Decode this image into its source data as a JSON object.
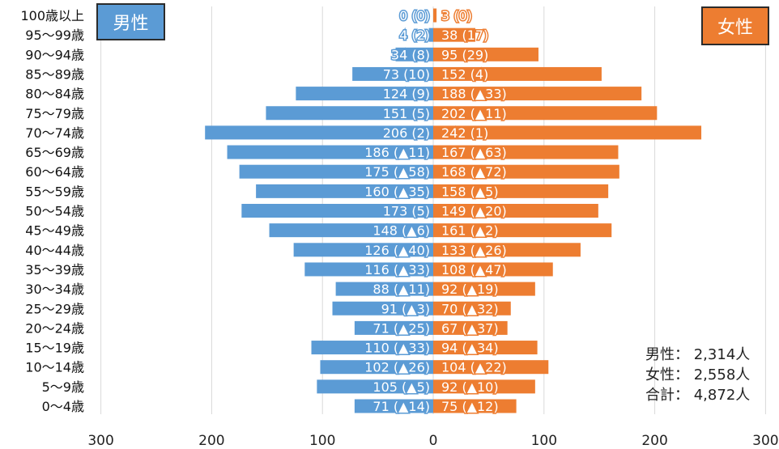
{
  "chart_data": {
    "type": "bar",
    "orientation": "horizontal-population-pyramid",
    "categories": [
      "100歳以上",
      "95～99歳",
      "90～94歳",
      "85～89歳",
      "80～84歳",
      "75～79歳",
      "70～74歳",
      "65～69歳",
      "60～64歳",
      "55～59歳",
      "50～54歳",
      "45～49歳",
      "40～44歳",
      "35～39歳",
      "30～34歳",
      "25～29歳",
      "20～24歳",
      "15～19歳",
      "10～14歳",
      "5～9歳",
      "0～4歳"
    ],
    "series": [
      {
        "name": "男性",
        "color": "#5b9bd5",
        "values": [
          0,
          4,
          34,
          73,
          124,
          151,
          206,
          186,
          175,
          160,
          173,
          148,
          126,
          116,
          88,
          91,
          71,
          110,
          102,
          105,
          71
        ],
        "labels": [
          "0 (0)",
          "4 (2)",
          "34 (8)",
          "73 (10)",
          "124 (9)",
          "151 (5)",
          "206 (2)",
          "186 (▲11)",
          "175 (▲58)",
          "160 (▲35)",
          "173 (5)",
          "148 (▲6)",
          "126 (▲40)",
          "116 (▲33)",
          "88 (▲11)",
          "91 (▲3)",
          "71 (▲25)",
          "110 (▲33)",
          "102 (▲26)",
          "105 (▲5)",
          "71 (▲14)"
        ]
      },
      {
        "name": "女性",
        "color": "#ed7d31",
        "values": [
          3,
          38,
          95,
          152,
          188,
          202,
          242,
          167,
          168,
          158,
          149,
          161,
          133,
          108,
          92,
          70,
          67,
          94,
          104,
          92,
          75
        ],
        "labels": [
          "3 (0)",
          "38 (17)",
          "95 (29)",
          "152 (4)",
          "188 (▲33)",
          "202 (▲11)",
          "242 (1)",
          "167 (▲63)",
          "168 (▲72)",
          "158 (▲5)",
          "149 (▲20)",
          "161 (▲2)",
          "133 (▲26)",
          "108 (▲47)",
          "92 (▲19)",
          "70 (▲32)",
          "67 (▲37)",
          "94 (▲34)",
          "104 (▲22)",
          "92 (▲10)",
          "75 (▲12)"
        ]
      }
    ],
    "xlim": [
      -300,
      300
    ],
    "xticks": [
      -300,
      -200,
      -100,
      0,
      100,
      200,
      300
    ],
    "xtick_labels": [
      "300",
      "200",
      "100",
      "0",
      "100",
      "200",
      "300"
    ],
    "grid": true,
    "legend": {
      "male": "男性",
      "female": "女性",
      "placement": "top"
    }
  },
  "totals": {
    "male_label": "男性：",
    "male_value": "2,314人",
    "female_label": "女性：",
    "female_value": "2,558人",
    "total_label": "合計：",
    "total_value": "4,872人"
  }
}
